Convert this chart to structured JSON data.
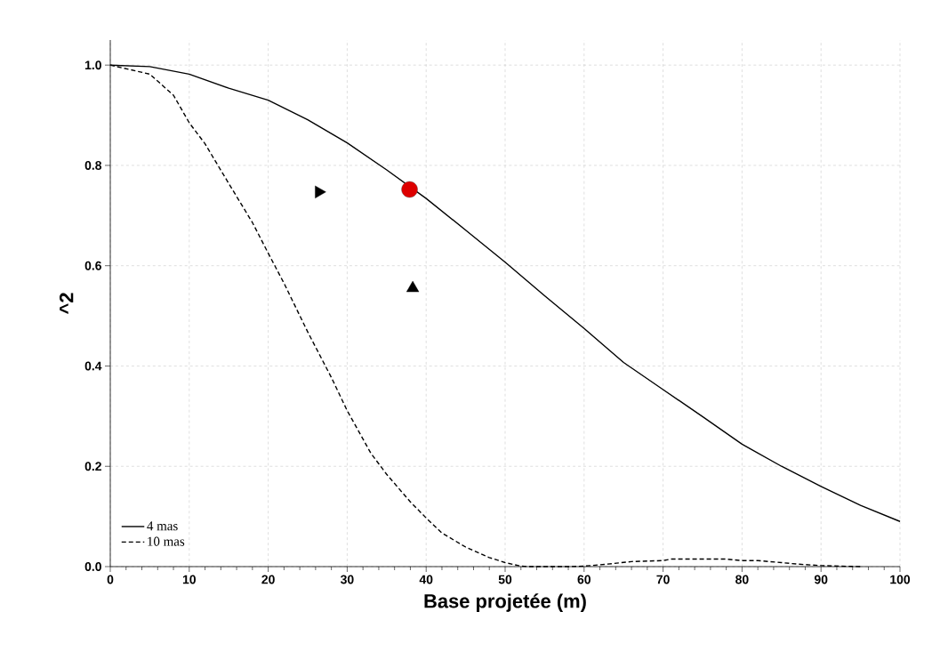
{
  "chart_data": {
    "type": "line",
    "xlabel": "Base projetée (m)",
    "ylabel": "^2",
    "xlim": [
      0,
      100
    ],
    "ylim": [
      0,
      1.05
    ],
    "xticks": [
      0,
      10,
      20,
      30,
      40,
      50,
      60,
      70,
      80,
      90,
      100
    ],
    "yticks": [
      {
        "value": 0,
        "label": "0.0"
      },
      {
        "value": 0.2,
        "label": "0.2"
      },
      {
        "value": 0.4,
        "label": "0.4"
      },
      {
        "value": 0.6,
        "label": "0.6"
      },
      {
        "value": 0.8,
        "label": "0.8"
      },
      {
        "value": 1,
        "label": "1.0"
      }
    ],
    "grid": true,
    "legend": "bottom left",
    "series": [
      {
        "name": "4 mas",
        "color": "#000000",
        "line_style": "solid",
        "x": [
          0,
          5,
          10,
          15,
          20,
          25,
          30,
          35,
          40,
          45,
          50,
          55,
          60,
          65,
          70,
          75,
          80,
          85,
          90,
          95,
          100
        ],
        "values": [
          1.0,
          0.997,
          0.982,
          0.954,
          0.93,
          0.891,
          0.845,
          0.791,
          0.734,
          0.671,
          0.607,
          0.54,
          0.475,
          0.407,
          0.353,
          0.299,
          0.244,
          0.2,
          0.16,
          0.122,
          0.09
        ]
      },
      {
        "name": "10 mas",
        "color": "#000000",
        "line_style": "dashed",
        "x": [
          0,
          5,
          8,
          10,
          12,
          15,
          18,
          20,
          22,
          25,
          28,
          30,
          33,
          35,
          38,
          40,
          42,
          45,
          48,
          50,
          52,
          53,
          58,
          60,
          63,
          66,
          70,
          71,
          78,
          80,
          82,
          85,
          87,
          90,
          95
        ],
        "values": [
          1.0,
          0.982,
          0.94,
          0.885,
          0.843,
          0.764,
          0.686,
          0.625,
          0.565,
          0.468,
          0.377,
          0.311,
          0.226,
          0.184,
          0.129,
          0.097,
          0.067,
          0.039,
          0.018,
          0.008,
          0.001,
          0,
          0,
          0.001,
          0.005,
          0.01,
          0.012,
          0.015,
          0.015,
          0.012,
          0.012,
          0.008,
          0.005,
          0.002,
          0
        ]
      },
      {
        "type": "scatter",
        "marker": "triangle-right",
        "color": "#000000",
        "x": [
          26.4
        ],
        "values": [
          0.747
        ]
      },
      {
        "type": "scatter",
        "marker": "circle",
        "color": "#dd0000",
        "x": [
          37.9
        ],
        "values": [
          0.752
        ]
      },
      {
        "type": "scatter",
        "marker": "triangle",
        "color": "#000000",
        "x": [
          38.3
        ],
        "values": [
          0.555
        ]
      }
    ]
  }
}
